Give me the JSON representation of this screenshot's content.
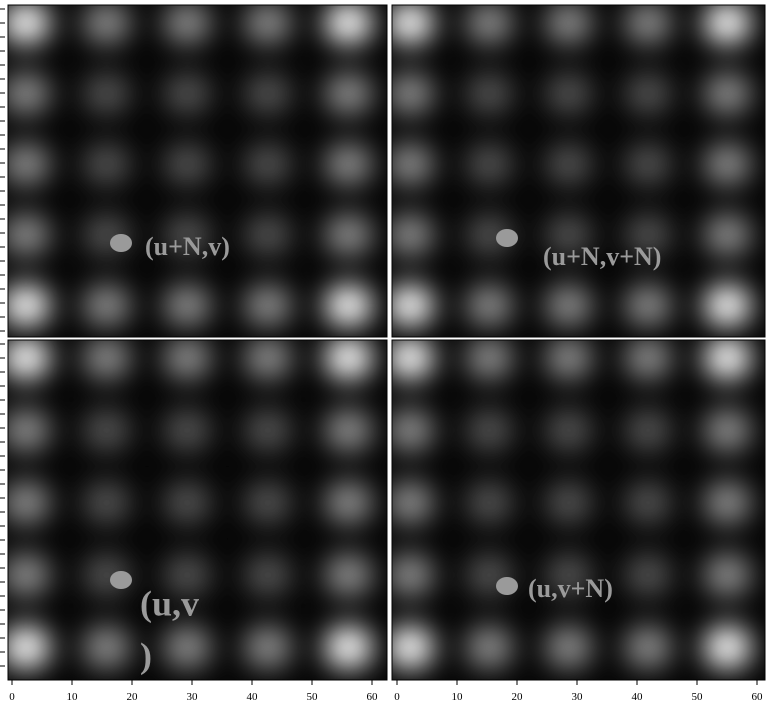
{
  "panels": [
    {
      "label": [
        "(u+N,v)"
      ]
    },
    {
      "label": [
        "(u+N,v+N)"
      ]
    },
    {
      "label": [
        "(u,v",
        ")"
      ]
    },
    {
      "label": [
        "(u,v+N)"
      ]
    }
  ],
  "x_axis": {
    "ticks": [
      0,
      10,
      20,
      30,
      40,
      50,
      60
    ]
  }
}
